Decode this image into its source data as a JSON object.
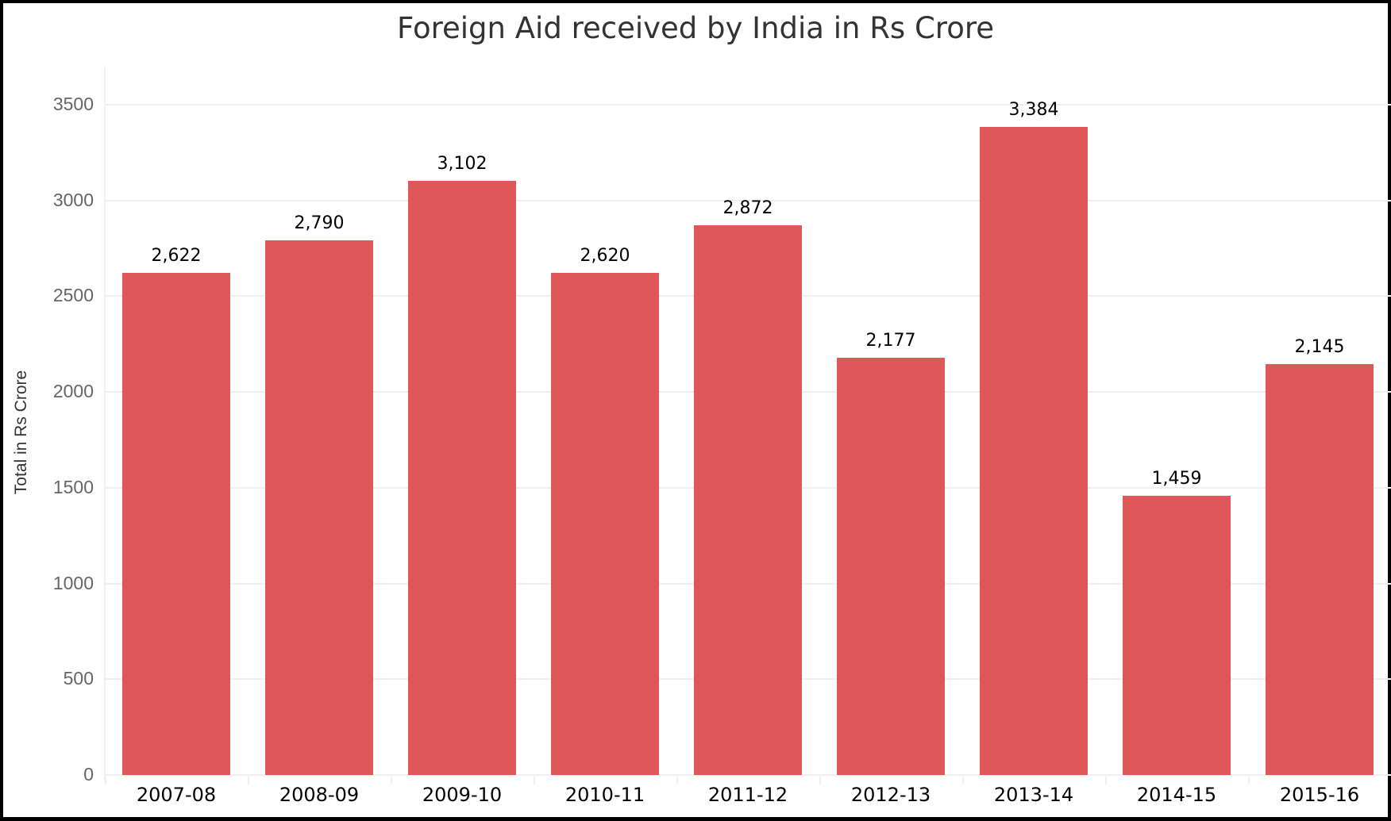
{
  "chart_data": {
    "type": "bar",
    "title": "Foreign Aid received by India in Rs Crore",
    "xlabel": "",
    "ylabel": "Total in Rs Crore",
    "categories": [
      "2007-08",
      "2008-09",
      "2009-10",
      "2010-11",
      "2011-12",
      "2012-13",
      "2013-14",
      "2014-15",
      "2015-16"
    ],
    "values": [
      2622,
      2790,
      3102,
      2620,
      2872,
      2177,
      3384,
      1459,
      2145
    ],
    "value_labels": [
      "2,622",
      "2,790",
      "3,102",
      "2,620",
      "2,872",
      "2,177",
      "3,384",
      "1,459",
      "2,145"
    ],
    "yticks": [
      "0",
      "500",
      "1000",
      "1500",
      "2000",
      "2500",
      "3000",
      "3500"
    ],
    "ylim": [
      0,
      3500
    ],
    "grid": true,
    "bar_color": "#e0575b",
    "legend": null
  }
}
